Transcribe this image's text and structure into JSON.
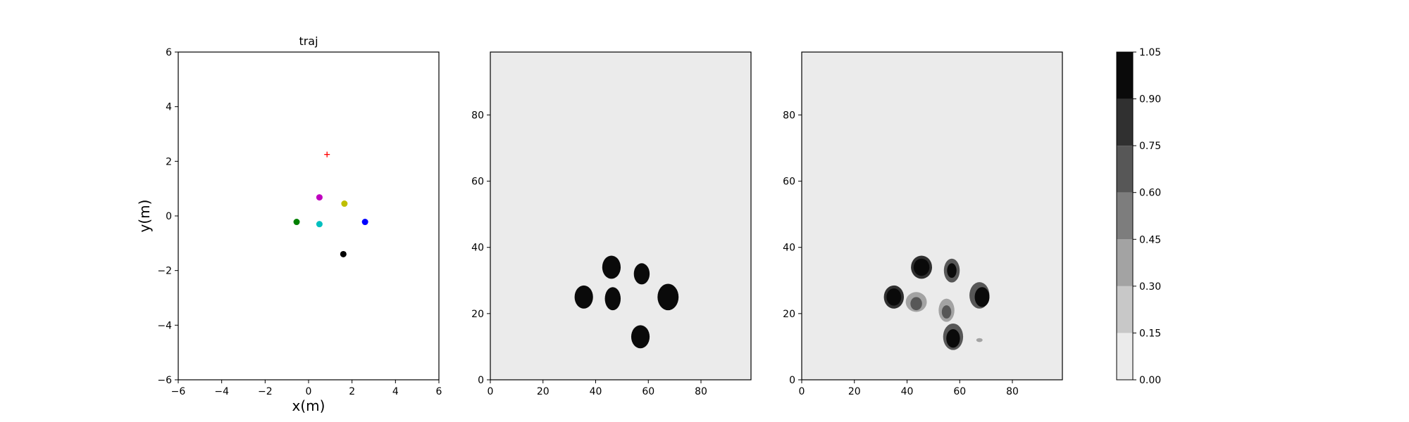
{
  "chart_data": [
    {
      "type": "scatter",
      "title": "traj",
      "xlabel": "x(m)",
      "ylabel": "y(m)",
      "xlim": [
        -6,
        6
      ],
      "ylim": [
        -6,
        6
      ],
      "x_ticks": [
        "−6",
        "−4",
        "−2",
        "0",
        "2",
        "4",
        "6"
      ],
      "y_ticks": [
        "−6",
        "−4",
        "−2",
        "0",
        "2",
        "4",
        "6"
      ],
      "grid": false,
      "points": [
        {
          "x": 0.85,
          "y": 2.25,
          "color": "#ff0000",
          "marker": "plus"
        },
        {
          "x": 0.5,
          "y": 0.68,
          "color": "#bf00bf",
          "marker": "dot"
        },
        {
          "x": 1.65,
          "y": 0.45,
          "color": "#bfbf00",
          "marker": "dot"
        },
        {
          "x": -0.55,
          "y": -0.22,
          "color": "#008000",
          "marker": "dot"
        },
        {
          "x": 0.5,
          "y": -0.3,
          "color": "#00bfbf",
          "marker": "dot"
        },
        {
          "x": 2.6,
          "y": -0.22,
          "color": "#0000ff",
          "marker": "dot"
        },
        {
          "x": 1.6,
          "y": -1.4,
          "color": "#000000",
          "marker": "dot"
        }
      ]
    },
    {
      "type": "heatmap",
      "title": "",
      "xlim": [
        0,
        99
      ],
      "ylim": [
        0,
        99
      ],
      "x_ticks": [
        "0",
        "20",
        "40",
        "60",
        "80"
      ],
      "y_ticks": [
        "0",
        "20",
        "40",
        "60",
        "80"
      ],
      "background_level": 0.0,
      "blobs": [
        {
          "x": 46,
          "y": 34,
          "rx": 3.5,
          "ry": 3.5,
          "level": 1.0
        },
        {
          "x": 57.5,
          "y": 32,
          "rx": 3,
          "ry": 3.2,
          "level": 1.0
        },
        {
          "x": 35.5,
          "y": 25,
          "rx": 3.5,
          "ry": 3.5,
          "level": 1.0
        },
        {
          "x": 46.5,
          "y": 24.5,
          "rx": 3,
          "ry": 3.5,
          "level": 1.0
        },
        {
          "x": 67.5,
          "y": 25,
          "rx": 4,
          "ry": 4,
          "level": 1.0
        },
        {
          "x": 57,
          "y": 13,
          "rx": 3.5,
          "ry": 3.5,
          "level": 1.0
        }
      ]
    },
    {
      "type": "heatmap",
      "title": "",
      "xlim": [
        0,
        99
      ],
      "ylim": [
        0,
        99
      ],
      "x_ticks": [
        "0",
        "20",
        "40",
        "60",
        "80"
      ],
      "y_ticks": [
        "0",
        "20",
        "40",
        "60",
        "80"
      ],
      "background_level": 0.0,
      "blobs": [
        {
          "x": 45.5,
          "y": 34,
          "rx": 4,
          "ry": 3.5,
          "level": 0.8
        },
        {
          "x": 45.5,
          "y": 34,
          "rx": 3,
          "ry": 2.6,
          "level": 1.0
        },
        {
          "x": 57,
          "y": 33,
          "rx": 3,
          "ry": 3.6,
          "level": 0.7
        },
        {
          "x": 57,
          "y": 33,
          "rx": 1.8,
          "ry": 2.2,
          "level": 0.95
        },
        {
          "x": 35,
          "y": 25,
          "rx": 3.8,
          "ry": 3.5,
          "level": 0.8
        },
        {
          "x": 35,
          "y": 25,
          "rx": 2.8,
          "ry": 2.6,
          "level": 1.0
        },
        {
          "x": 43.5,
          "y": 23.5,
          "rx": 4,
          "ry": 3,
          "level": 0.35
        },
        {
          "x": 43.5,
          "y": 23,
          "rx": 2.2,
          "ry": 2,
          "level": 0.7
        },
        {
          "x": 55,
          "y": 21,
          "rx": 3,
          "ry": 3.5,
          "level": 0.35
        },
        {
          "x": 55,
          "y": 20.5,
          "rx": 1.8,
          "ry": 2,
          "level": 0.6
        },
        {
          "x": 67.5,
          "y": 25.5,
          "rx": 3.8,
          "ry": 4,
          "level": 0.6
        },
        {
          "x": 68.5,
          "y": 25,
          "rx": 2.8,
          "ry": 3,
          "level": 1.0
        },
        {
          "x": 57.5,
          "y": 13,
          "rx": 3.8,
          "ry": 4,
          "level": 0.6
        },
        {
          "x": 57.5,
          "y": 12.5,
          "rx": 2.6,
          "ry": 2.8,
          "level": 1.0
        },
        {
          "x": 67.5,
          "y": 12,
          "rx": 1.2,
          "ry": 0.6,
          "level": 0.3
        }
      ]
    }
  ],
  "colorbar": {
    "ticks": [
      "0.00",
      "0.15",
      "0.30",
      "0.45",
      "0.60",
      "0.75",
      "0.90",
      "1.05"
    ],
    "levels": [
      0.0,
      0.15,
      0.3,
      0.45,
      0.6,
      0.75,
      0.9,
      1.05
    ],
    "colors": [
      "#ebebeb",
      "#c8c8c8",
      "#a3a3a3",
      "#7d7d7d",
      "#575757",
      "#303030",
      "#0a0a0a"
    ]
  }
}
